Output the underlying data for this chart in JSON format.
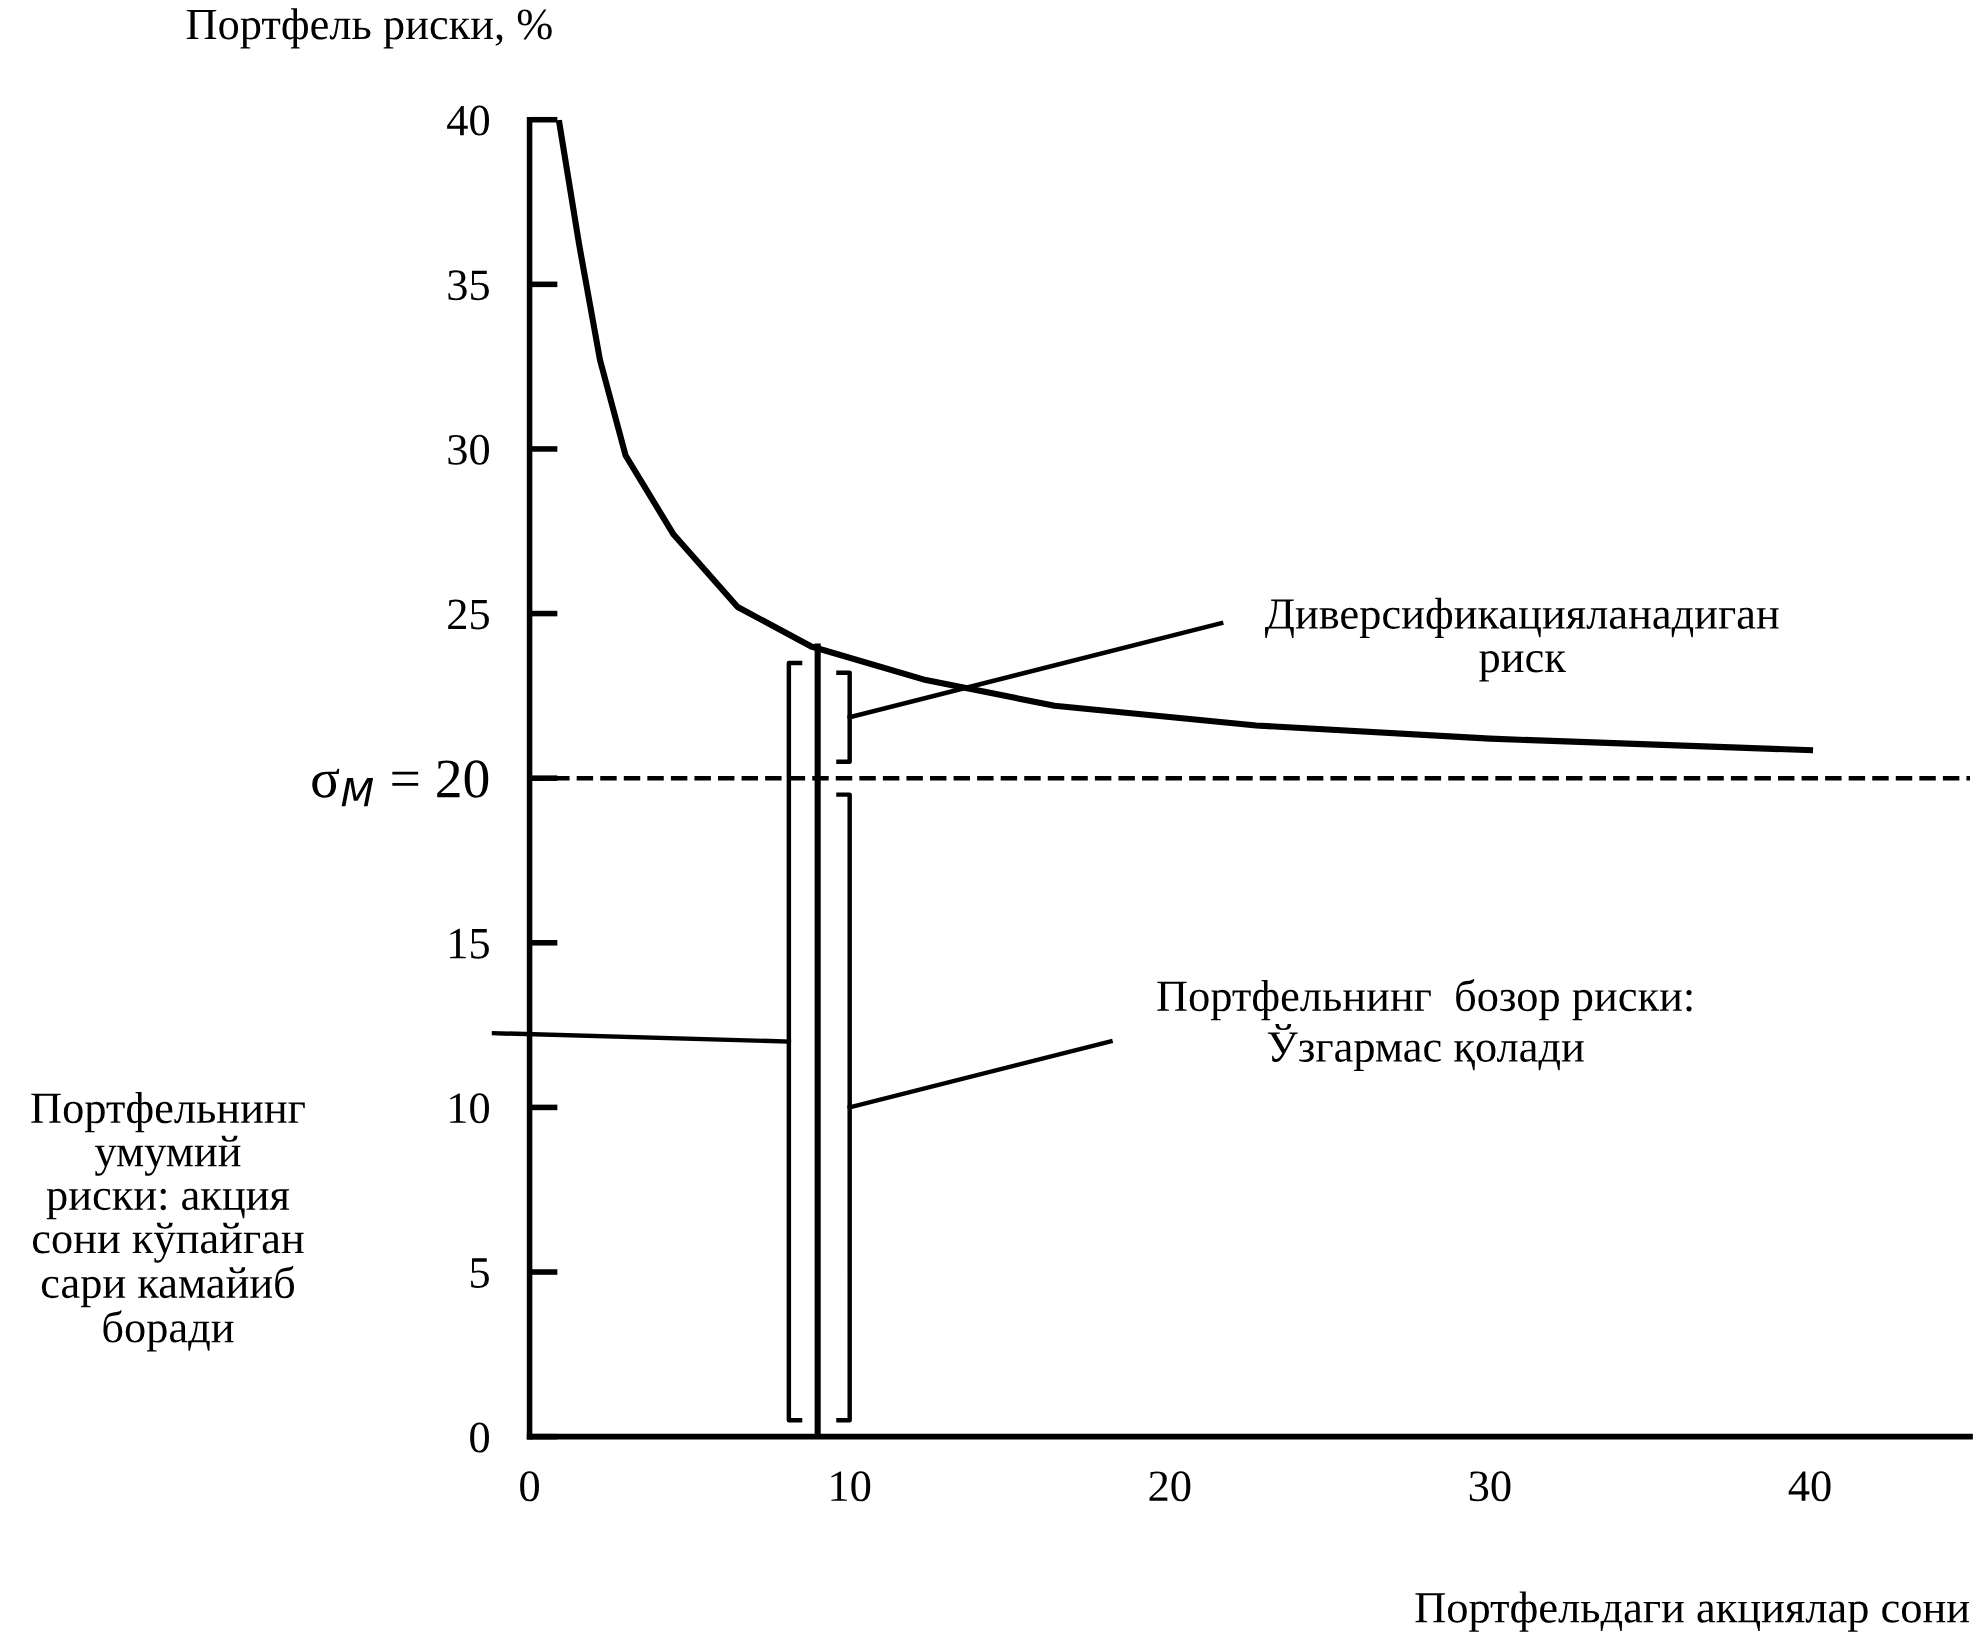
{
  "chart_data": {
    "type": "line",
    "xlabel": "Портфельдаги акциялар сони",
    "ylabel": "Портфель риски, %",
    "series": [
      {
        "color": "#000000",
        "x": [
          0.93,
          1.55,
          2.2,
          3.0,
          4.5,
          6.5,
          8.8,
          12.3,
          16.4,
          22.7,
          30,
          40
        ],
        "values": [
          39.9,
          36.2,
          32.7,
          29.8,
          27.4,
          25.2,
          24.0,
          23.0,
          22.2,
          21.6,
          21.2,
          20.85
        ]
      },
      {
        "color": "#000000",
        "x": [
          9,
          9
        ],
        "values": [
          0,
          24.0
        ]
      }
    ],
    "xlim": [
      0,
      45
    ],
    "xticks": [
      0,
      10,
      20,
      30,
      40
    ],
    "ylim": [
      0,
      40
    ],
    "yticks": [
      0,
      5,
      10,
      15,
      {
        "value": 20,
        "label": "σ$_{M}$ = 20"
      },
      25,
      30,
      35,
      40
    ],
    "ref_lines": [
      {
        "axis": "y",
        "value": 20,
        "line_style": "dashed",
        "color": "#000000"
      }
    ],
    "annotations": [
      "Диверсификацияланадиган\nриск",
      "Портфельнинг  бозор риски:\nЎзгармас қолади",
      "Портфельнинг\nумумий\nриски: акция\nсони кўпайган\nсари камайиб\nборади"
    ],
    "grid": false,
    "legend": false,
    "marker": "none",
    "line_style": "solid"
  }
}
